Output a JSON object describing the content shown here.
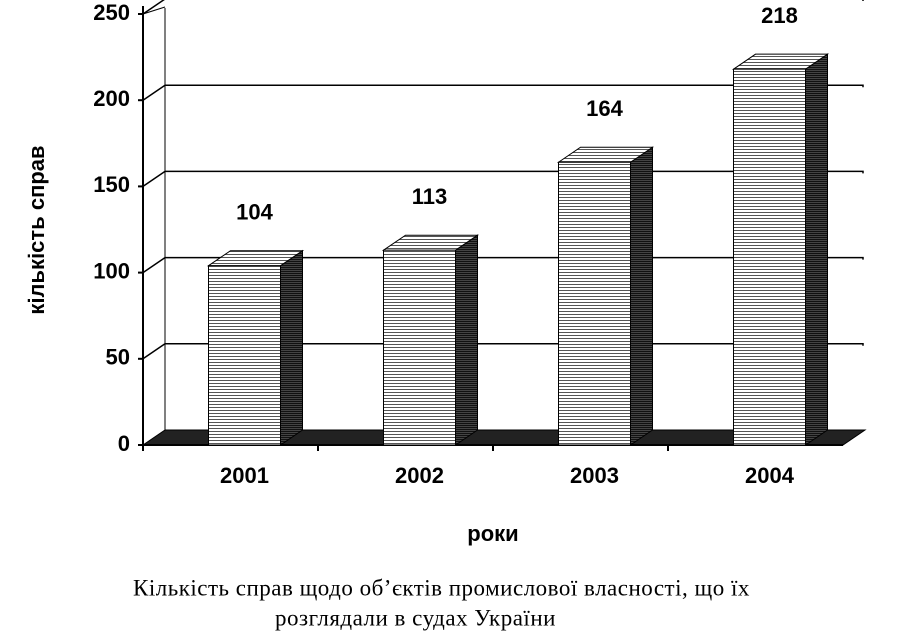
{
  "chart_data": {
    "type": "bar3d",
    "categories": [
      "2001",
      "2002",
      "2003",
      "2004"
    ],
    "values": [
      104,
      113,
      164,
      218
    ],
    "ylim": [
      0,
      250
    ],
    "yticks": [
      0,
      50,
      100,
      150,
      200,
      250
    ],
    "grid": true,
    "color": "#000000",
    "y_label": "кількість справ",
    "x_label": "роки",
    "caption": [
      "Кількість справ щодо об’єктів промислової власності, що їх",
      "розглядали в судах України"
    ]
  }
}
